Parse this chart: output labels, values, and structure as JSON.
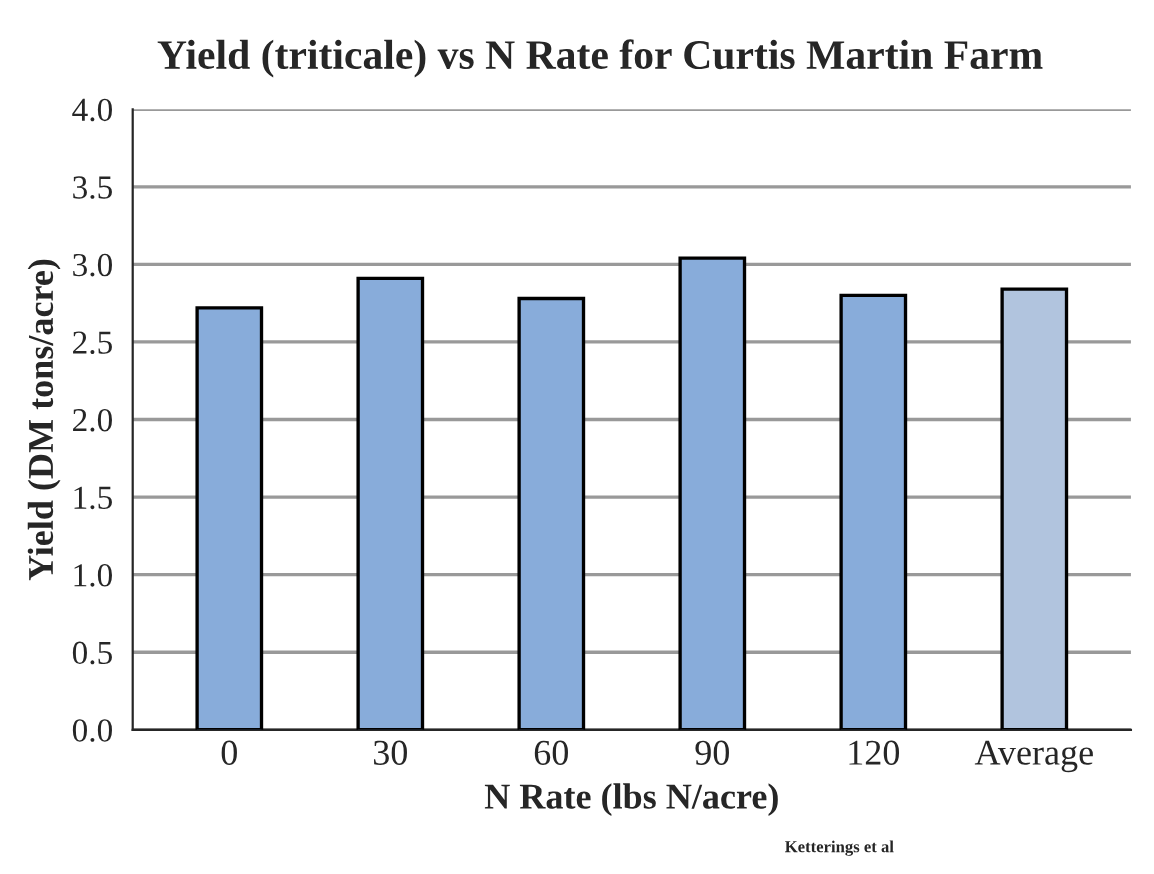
{
  "chart_data": {
    "type": "bar",
    "title": "Yield (triticale) vs N Rate for Curtis Martin Farm",
    "xlabel": "N Rate (lbs N/acre)",
    "ylabel": "Yield (DM tons/acre)",
    "categories": [
      "0",
      "30",
      "60",
      "90",
      "120",
      "Average"
    ],
    "values": [
      2.72,
      2.91,
      2.78,
      3.04,
      2.8,
      2.84
    ],
    "colors": [
      "#7aaae8",
      "#7aaae8",
      "#7aaae8",
      "#7aaae8",
      "#7aaae8",
      "#a9c3e6"
    ],
    "ylim": [
      0,
      4
    ],
    "yticks": [
      {
        "value": 0,
        "label": "0.0"
      },
      {
        "value": 0.5,
        "label": "0.5"
      },
      {
        "value": 1,
        "label": "1.0"
      },
      {
        "value": 1.5,
        "label": "1.5"
      },
      {
        "value": 2,
        "label": "2.0"
      },
      {
        "value": 2.5,
        "label": "2.5"
      },
      {
        "value": 3,
        "label": "3.0"
      },
      {
        "value": 3.5,
        "label": "3.5"
      },
      {
        "value": 4,
        "label": "4.0"
      }
    ],
    "grid": "y",
    "annotations": [
      "Ketterings et al"
    ]
  }
}
